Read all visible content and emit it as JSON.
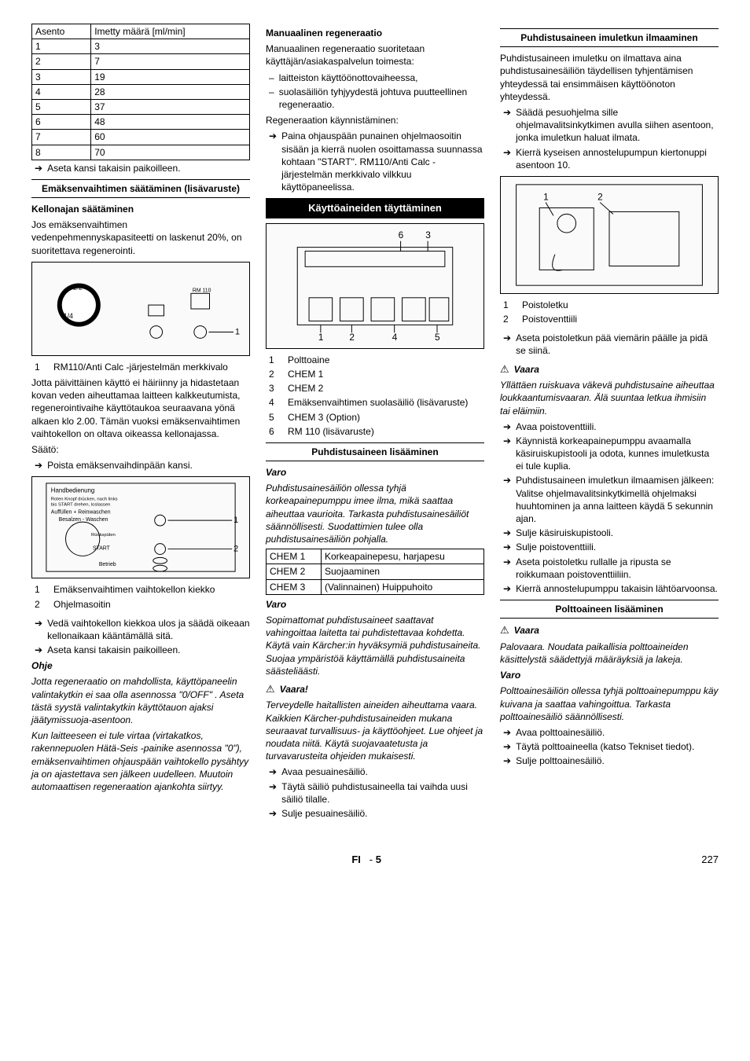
{
  "col1": {
    "asento_table": {
      "headers": [
        "Asento",
        "Imetty määrä [ml/min]"
      ],
      "rows": [
        [
          "1",
          "3"
        ],
        [
          "2",
          "7"
        ],
        [
          "3",
          "19"
        ],
        [
          "4",
          "28"
        ],
        [
          "5",
          "37"
        ],
        [
          "6",
          "48"
        ],
        [
          "7",
          "60"
        ],
        [
          "8",
          "70"
        ]
      ]
    },
    "arrow_1": "Aseta kansi takaisin paikoilleen.",
    "h1": "Emäksenvaihtimen säätäminen (lisävaruste)",
    "h2": "Kellonajan säätäminen",
    "p1": "Jos emäksenvaihtimen vedenpehmennyskapasiteetti on laskenut 20%, on suoritettava regenerointi.",
    "fig1_items": [
      [
        "1",
        "RM110/Anti Calc -järjestelmän merkkivalo"
      ]
    ],
    "p2": "Jotta päivittäinen käyttö ei häiriinny ja hidastetaan kovan veden aiheuttamaa laitteen kalkkeutumista, regenerointivaihe käyttötaukoa seuraavana yönä alkaen klo 2.00. Tämän vuoksi emäksenvaihtimen vaihtokellon on oltava oikeassa kellonajassa.",
    "p3": "Säätö:",
    "arrow_2": "Poista emäksenvaihdinpään kansi.",
    "fig2_items": [
      [
        "1",
        "Emäksenvaihtimen vaihtokellon kiekko"
      ],
      [
        "2",
        "Ohjelmasoitin"
      ]
    ],
    "arrow_3": "Vedä vaihtokellon kiekkoa ulos ja säädä oikeaan kellonaikaan kääntämällä sitä.",
    "arrow_4": "Aseta kansi takaisin paikoilleen.",
    "ohje": "Ohje",
    "p4": "Jotta regeneraatio on mahdollista, käyttöpaneelin valintakytkin ei saa olla asennossa \"0/OFF\" . Aseta tästä syystä valintakytkin käyttötauon ajaksi jäätymissuoja-asentoon.",
    "p5": "Kun laitteeseen ei tule virtaa (virtakatkos, rakennepuolen Hätä-Seis -painike asennossa \"0\"), emäksenvaihtimen ohjauspään vaihtokello pysähtyy ja on ajastettava sen jälkeen uudelleen. Muutoin automaattisen regeneraation ajankohta siirtyy."
  },
  "col2": {
    "h1": "Manuaalinen regeneraatio",
    "p1": "Manuaalinen regeneraatio suoritetaan käyttäjän/asiakaspalvelun toimesta:",
    "dash1": "laitteiston käyttöönottovaiheessa,",
    "dash2": "suolasäiliön tyhjyydestä johtuva puutteellinen regeneraatio.",
    "p2": "Regeneraation käynnistäminen:",
    "arrow_1": "Paina ohjauspään punainen ohjelmaosoitin sisään ja kierrä nuolen osoittamassa suunnassa kohtaan \"START\". RM110/Anti Calc -järjestelmän merkkivalo vilkkuu käyttöpaneelissa.",
    "h_inv": "Käyttöaineiden täyttäminen",
    "fig_items": [
      [
        "1",
        "Polttoaine"
      ],
      [
        "2",
        "CHEM 1"
      ],
      [
        "3",
        "CHEM 2"
      ],
      [
        "4",
        "Emäksenvaihtimen suolasäiliö (lisävaruste)"
      ],
      [
        "5",
        "CHEM 3 (Option)"
      ],
      [
        "6",
        "RM 110 (lisävaruste)"
      ]
    ],
    "h2": "Puhdistusaineen lisääminen",
    "varo1": "Varo",
    "p3": "Puhdistusainesäiliön ollessa tyhjä korkeapainepumppu imee ilma, mikä saattaa aiheuttaa vaurioita. Tarkasta puhdistusainesäiliöt säännöllisesti. Suodattimien tulee olla puhdistusainesäiliön pohjalla.",
    "chem_table": [
      [
        "CHEM 1",
        "Korkeapainepesu, harjapesu"
      ],
      [
        "CHEM 2",
        "Suojaaminen"
      ],
      [
        "CHEM 3",
        "(Valinnainen) Huippuhoito"
      ]
    ],
    "varo2": "Varo",
    "p4": "Sopimattomat puhdistusaineet saattavat vahingoittaa laitetta tai puhdistettavaa kohdetta. Käytä vain Kärcher:in hyväksymiä puhdistusaineita. Suojaa ympäristöä käyttämällä puhdistusaineita säästeliäästi.",
    "vaara1": "Vaara!",
    "p5": "Terveydelle haitallisten aineiden aiheuttama vaara. Kaikkien Kärcher-puhdistusaineiden mukana seuraavat turvallisuus- ja käyttöohjeet. Lue ohjeet ja noudata niitä. Käytä suojavaatetusta ja turvavarusteita ohjeiden mukaisesti.",
    "arrow_2": "Avaa pesuainesäiliö.",
    "arrow_3": "Täytä säiliö puhdistusaineella tai vaihda uusi säiliö tilalle.",
    "arrow_4": "Sulje pesuainesäiliö."
  },
  "col3": {
    "h1": "Puhdistusaineen imuletkun ilmaaminen",
    "p1": "Puhdistusaineen imuletku on ilmattava aina puhdistusainesäiliön täydellisen tyhjentämisen yhteydessä tai ensimmäisen käyttöönoton yhteydessä.",
    "arrow_1": "Säädä pesuohjelma sille ohjelmavalitsinkytkimen avulla siihen asentoon, jonka imuletkun haluat ilmata.",
    "arrow_2": "Kierrä kyseisen annostelupumpun kiertonuppi asentoon 10.",
    "fig_items": [
      [
        "1",
        "Poistoletku"
      ],
      [
        "2",
        "Poistoventtiili"
      ]
    ],
    "arrow_3": "Aseta poistoletkun pää viemärin päälle ja pidä se siinä.",
    "vaara1": "Vaara",
    "p2": "Yllättäen ruiskuava väkevä puhdistusaine aiheuttaa loukkaantumisvaaran. Älä suuntaa letkua ihmisiin tai eläimiin.",
    "arrow_4": "Avaa poistoventtiili.",
    "arrow_5": "Käynnistä korkeapainepumppu avaamalla käsiruiskupistooli ja odota, kunnes imuletkusta ei tule kuplia.",
    "arrow_6": "Puhdistusaineen imuletkun ilmaamisen jälkeen: Valitse ohjelmavalitsinkytkimellä ohjelmaksi  huuhtominen ja anna laitteen käydä 5 sekunnin ajan.",
    "arrow_7": "Sulje käsiruiskupistooli.",
    "arrow_8": "Sulje poistoventtiili.",
    "arrow_9": "Aseta poistoletku rullalle ja ripusta se roikkumaan poistoventtiiliin.",
    "arrow_10": "Kierrä annostelupumppu takaisin lähtöarvoonsa.",
    "h2": "Polttoaineen lisääminen",
    "vaara2": "Vaara",
    "p3": "Palovaara. Noudata paikallisia polttoaineiden käsittelystä säädettyjä määräyksiä ja lakeja.",
    "varo1": "Varo",
    "p4": "Polttoainesäiliön ollessa tyhjä polttoainepumppu käy kuivana ja saattaa vahingoittua. Tarkasta polttoainesäiliö säännöllisesti.",
    "arrow_11": "Avaa polttoainesäiliö.",
    "arrow_12": "Täytä polttoaineella (katso Tekniset tiedot).",
    "arrow_13": "Sulje polttoainesäiliö."
  },
  "footer": {
    "lang": "FI",
    "sep": "-",
    "page_rel": "5",
    "page_abs": "227"
  }
}
